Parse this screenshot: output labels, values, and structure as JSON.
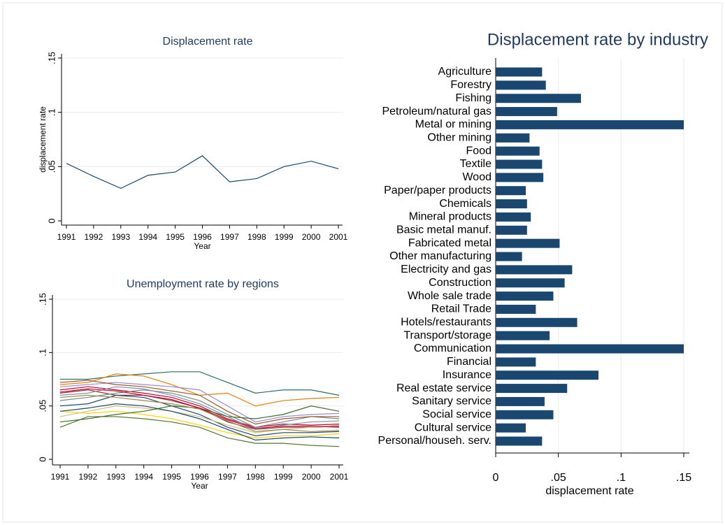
{
  "chart_data": [
    {
      "type": "line",
      "title": "Displacement rate",
      "xlabel": "Year",
      "ylabel": "displacement rate",
      "x": [
        1991,
        1992,
        1993,
        1994,
        1995,
        1996,
        1997,
        1998,
        1999,
        2000,
        2001
      ],
      "values": [
        0.053,
        0.041,
        0.03,
        0.042,
        0.045,
        0.06,
        0.036,
        0.039,
        0.05,
        0.055,
        0.048
      ],
      "color": "#1a476f",
      "xlim": [
        1991,
        2001
      ],
      "xticks": [
        1991,
        1992,
        1993,
        1994,
        1995,
        1996,
        1997,
        1998,
        1999,
        2000,
        2001
      ],
      "ylim": [
        0,
        0.15
      ],
      "yticks": [
        {
          "value": 0,
          "label": "0"
        },
        {
          "value": 0.05,
          "label": ".05"
        },
        {
          "value": 0.1,
          "label": ".1"
        },
        {
          "value": 0.15,
          "label": ".15"
        }
      ],
      "grid": true
    },
    {
      "type": "line",
      "title": "Unemployment rate by regions",
      "xlabel": "Year",
      "x": [
        1991,
        1992,
        1993,
        1994,
        1995,
        1996,
        1997,
        1998,
        1999,
        2000,
        2001
      ],
      "series": [
        {
          "color": "#2d6d66",
          "values": [
            0.075,
            0.075,
            0.078,
            0.08,
            0.082,
            0.082,
            0.072,
            0.062,
            0.065,
            0.065,
            0.06
          ]
        },
        {
          "color": "#e37e00",
          "values": [
            0.07,
            0.072,
            0.08,
            0.078,
            0.07,
            0.06,
            0.062,
            0.05,
            0.055,
            0.057,
            0.058
          ]
        },
        {
          "color": "#c10534",
          "values": [
            0.065,
            0.068,
            0.065,
            0.062,
            0.058,
            0.05,
            0.038,
            0.03,
            0.033,
            0.032,
            0.033
          ]
        },
        {
          "color": "#90353b",
          "values": [
            0.062,
            0.065,
            0.06,
            0.06,
            0.055,
            0.048,
            0.035,
            0.028,
            0.03,
            0.03,
            0.031
          ]
        },
        {
          "color": "#1a476f",
          "values": [
            0.05,
            0.052,
            0.06,
            0.058,
            0.05,
            0.042,
            0.03,
            0.022,
            0.025,
            0.025,
            0.026
          ]
        },
        {
          "color": "#55752f",
          "values": [
            0.03,
            0.04,
            0.04,
            0.038,
            0.035,
            0.03,
            0.02,
            0.015,
            0.015,
            0.013,
            0.012
          ]
        },
        {
          "color": "#ffd200",
          "values": [
            0.045,
            0.043,
            0.045,
            0.042,
            0.038,
            0.032,
            0.025,
            0.02,
            0.022,
            0.022,
            0.024
          ]
        },
        {
          "color": "#938dd2",
          "values": [
            0.068,
            0.07,
            0.072,
            0.07,
            0.068,
            0.065,
            0.05,
            0.035,
            0.04,
            0.042,
            0.043
          ]
        },
        {
          "color": "#6e8e84",
          "values": [
            0.055,
            0.058,
            0.062,
            0.065,
            0.062,
            0.055,
            0.042,
            0.03,
            0.035,
            0.04,
            0.038
          ]
        },
        {
          "color": "#cac27e",
          "values": [
            0.04,
            0.045,
            0.05,
            0.048,
            0.045,
            0.04,
            0.032,
            0.025,
            0.028,
            0.03,
            0.032
          ]
        },
        {
          "color": "#a0522d",
          "values": [
            0.072,
            0.074,
            0.07,
            0.068,
            0.064,
            0.06,
            0.045,
            0.033,
            0.038,
            0.04,
            0.04
          ]
        },
        {
          "color": "#7b92a8",
          "values": [
            0.06,
            0.062,
            0.068,
            0.066,
            0.06,
            0.052,
            0.04,
            0.028,
            0.032,
            0.035,
            0.036
          ]
        },
        {
          "color": "#3e6d2e",
          "values": [
            0.035,
            0.038,
            0.042,
            0.045,
            0.05,
            0.048,
            0.04,
            0.038,
            0.042,
            0.05,
            0.045
          ]
        },
        {
          "color": "#9c8847",
          "values": [
            0.058,
            0.06,
            0.058,
            0.055,
            0.052,
            0.047,
            0.036,
            0.026,
            0.028,
            0.026,
            0.027
          ]
        },
        {
          "color": "#1a476f",
          "values": [
            0.045,
            0.048,
            0.052,
            0.05,
            0.045,
            0.038,
            0.028,
            0.018,
            0.02,
            0.021,
            0.02
          ]
        },
        {
          "color": "#c10534",
          "values": [
            0.063,
            0.066,
            0.064,
            0.06,
            0.056,
            0.048,
            0.037,
            0.029,
            0.031,
            0.031,
            0.03
          ]
        }
      ],
      "xlim": [
        1991,
        2001
      ],
      "xticks": [
        1991,
        1992,
        1993,
        1994,
        1995,
        1996,
        1997,
        1998,
        1999,
        2000,
        2001
      ],
      "ylim": [
        0,
        0.15
      ],
      "yticks": [
        {
          "value": 0,
          "label": "0"
        },
        {
          "value": 0.05,
          "label": ".05"
        },
        {
          "value": 0.1,
          "label": ".1"
        },
        {
          "value": 0.15,
          "label": ".15"
        }
      ],
      "grid": true
    },
    {
      "type": "barh",
      "title": "Displacement rate by industry",
      "xlabel": "displacement rate",
      "categories": [
        "Agriculture",
        "Forestry",
        "Fishing",
        "Petroleum/natural gas",
        "Metal or mining",
        "Other mining",
        "Food",
        "Textile",
        "Wood",
        "Paper/paper products",
        "Chemicals",
        "Mineral products",
        "Basic metal manuf.",
        "Fabricated metal",
        "Other manufacturing",
        "Electricity and gas",
        "Construction",
        "Whole sale trade",
        "Retail Trade",
        "Hotels/restaurants",
        "Transport/storage",
        "Communication",
        "Financial",
        "Insurance",
        "Real estate service",
        "Sanitary service",
        "Social service",
        "Cultural service",
        "Personal/househ. serv."
      ],
      "values": [
        0.037,
        0.04,
        0.068,
        0.049,
        0.15,
        0.027,
        0.035,
        0.037,
        0.038,
        0.024,
        0.025,
        0.028,
        0.025,
        0.051,
        0.021,
        0.061,
        0.055,
        0.046,
        0.032,
        0.065,
        0.043,
        0.15,
        0.032,
        0.082,
        0.057,
        0.039,
        0.046,
        0.024,
        0.037
      ],
      "color": "#1a476f",
      "xlim": [
        0,
        0.15
      ],
      "xticks": [
        {
          "value": 0,
          "label": "0"
        },
        {
          "value": 0.05,
          "label": ".05"
        },
        {
          "value": 0.1,
          "label": ".1"
        },
        {
          "value": 0.15,
          "label": ".15"
        }
      ],
      "grid": true
    }
  ]
}
